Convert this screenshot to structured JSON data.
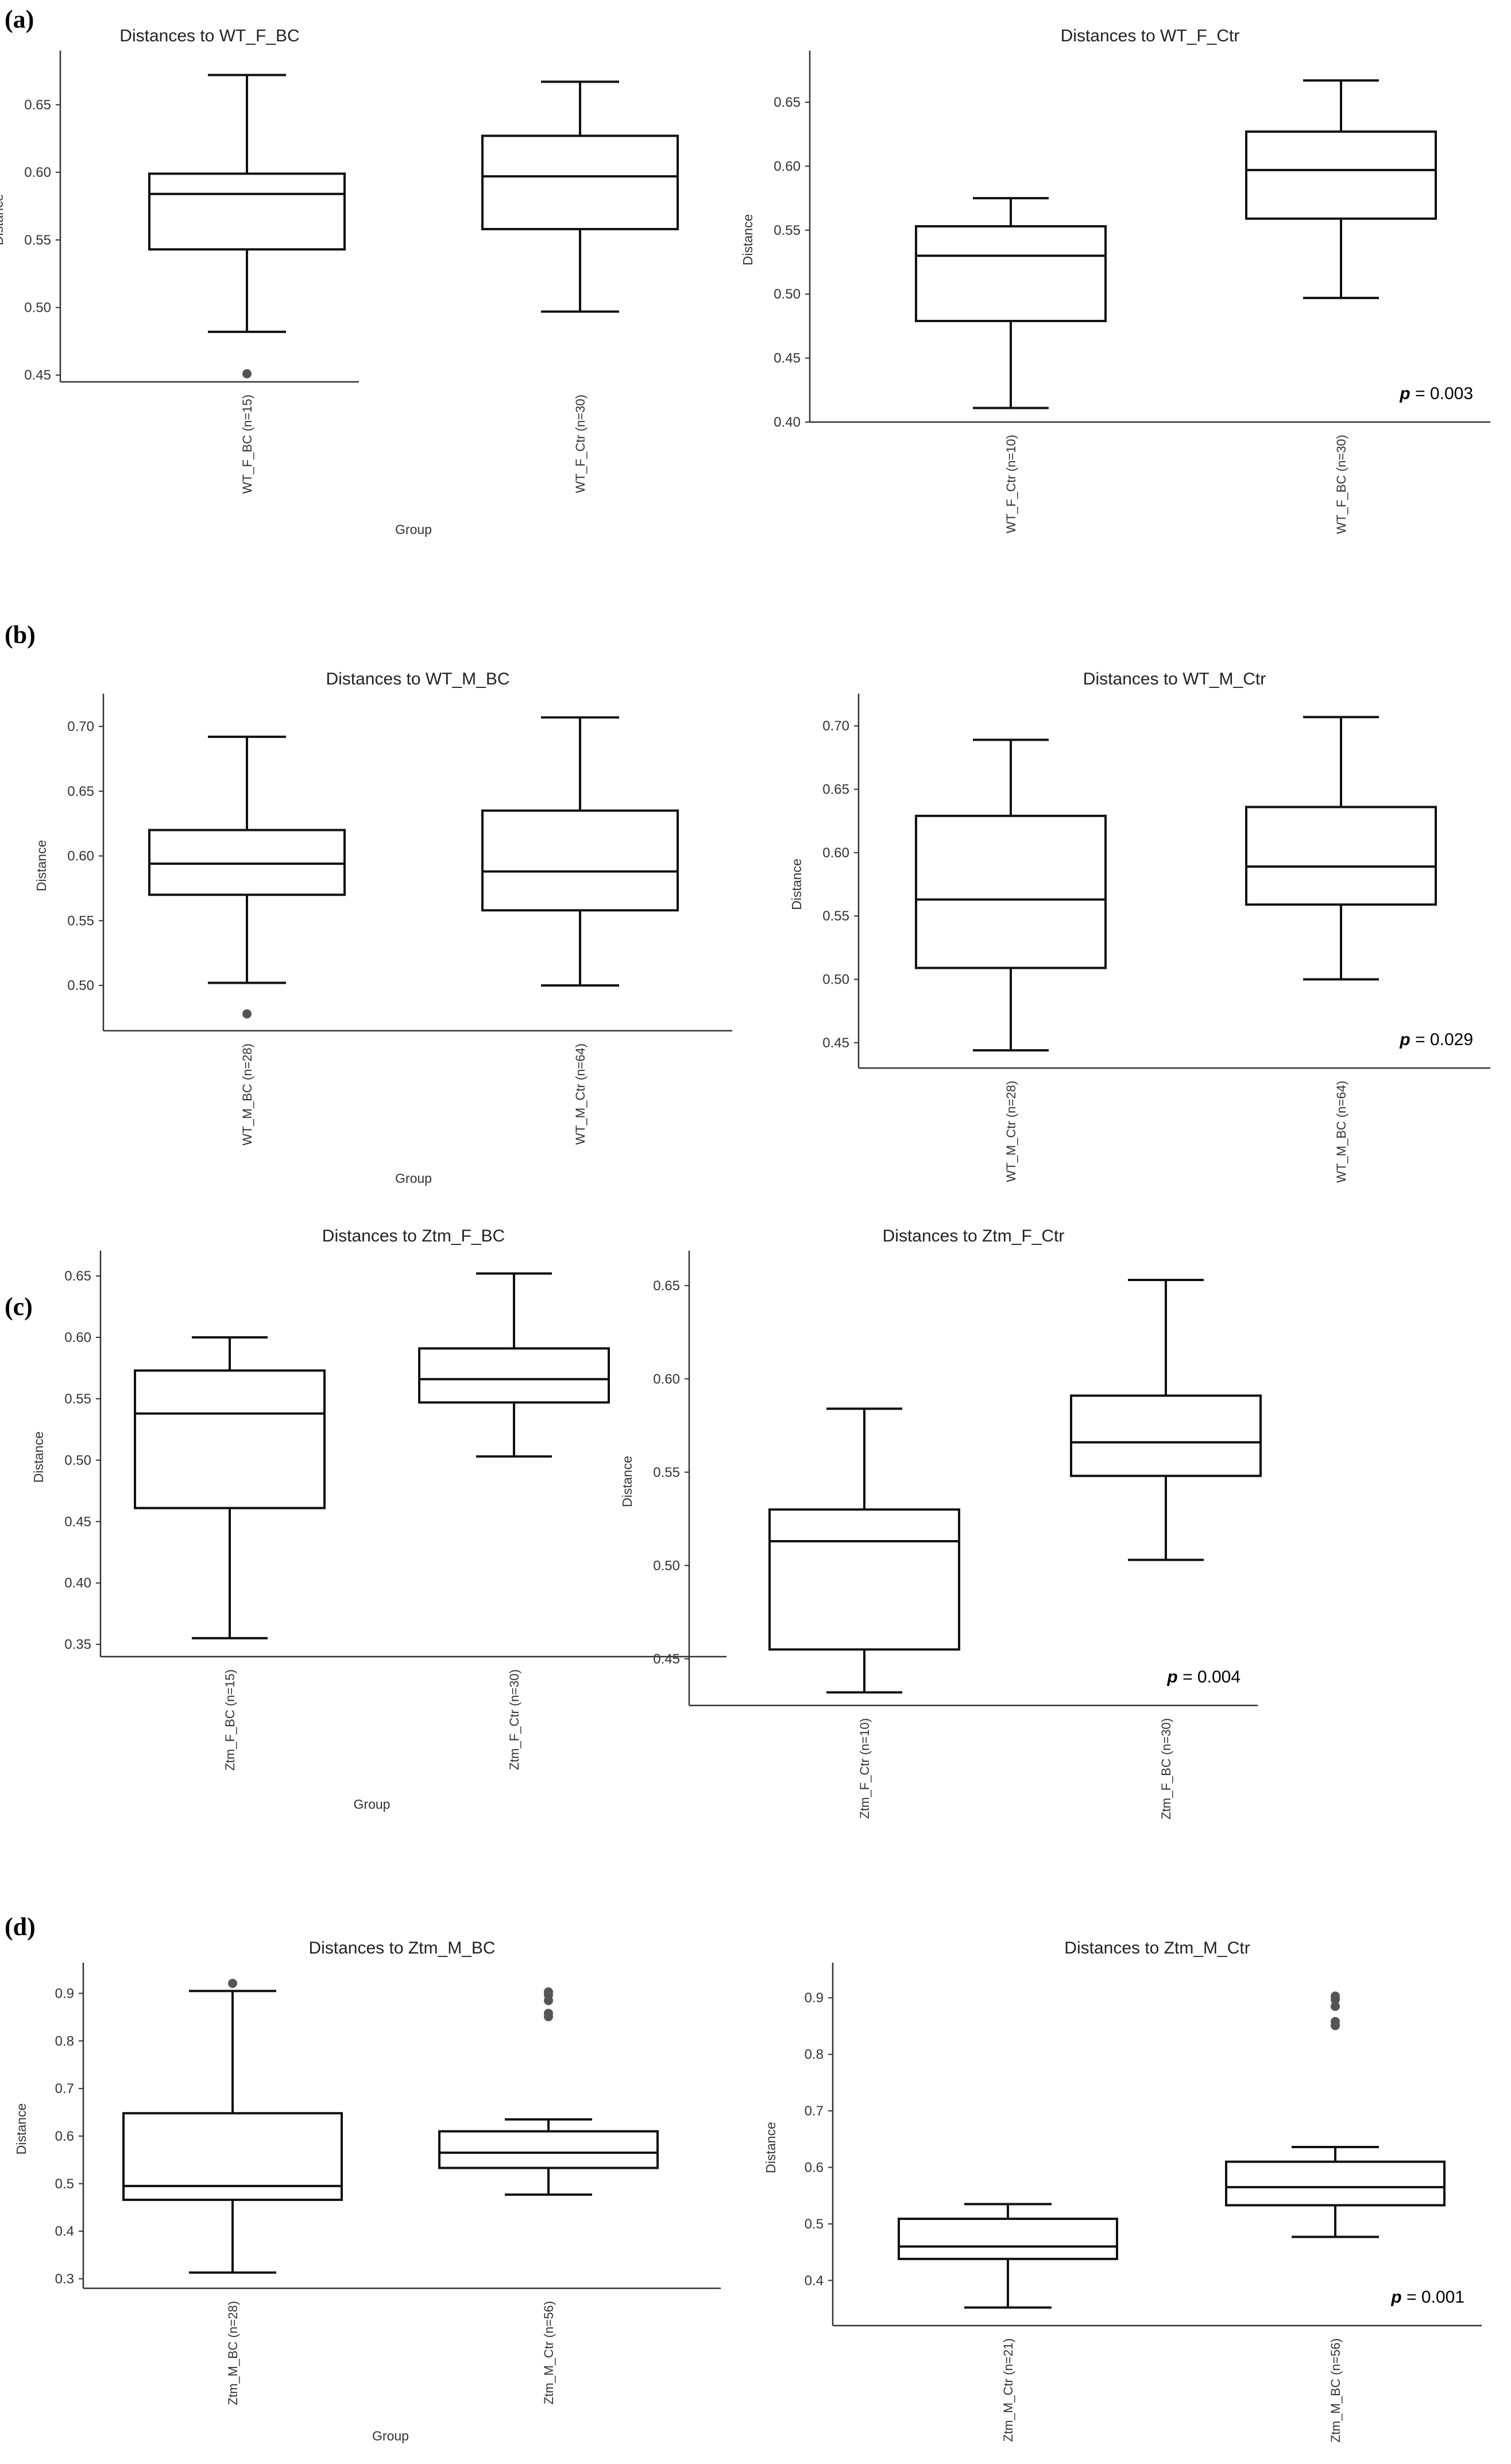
{
  "panel_labels": [
    "(a)",
    "(b)",
    "(c)",
    "(d)"
  ],
  "chart_data": [
    {
      "id": "a1",
      "panel": "(a)",
      "type": "box",
      "title": "Distances to WT_F_BC",
      "ylabel": "Distance",
      "xlabel": "Group",
      "ylim": [
        0.445,
        0.685
      ],
      "ticks": [
        0.45,
        0.5,
        0.55,
        0.6,
        0.65
      ],
      "tick_labels": [
        "0.45",
        "0.50",
        "0.55",
        "0.60",
        "0.65"
      ],
      "groups": [
        {
          "label": "WT_F_BC (n=15)",
          "whisker_low": 0.482,
          "q1": 0.543,
          "median": 0.584,
          "q3": 0.599,
          "whisker_high": 0.672,
          "outliers": [
            0.451
          ]
        },
        {
          "label": "WT_F_Ctr (n=30)",
          "whisker_low": 0.497,
          "q1": 0.558,
          "median": 0.597,
          "q3": 0.627,
          "whisker_high": 0.667,
          "outliers": []
        }
      ],
      "pvalue_label": "",
      "pvalue": ""
    },
    {
      "id": "a2",
      "panel": "(a)",
      "type": "box",
      "title": "Distances to WT_F_Ctr",
      "ylabel": "Distance",
      "xlabel": "",
      "ylim": [
        0.4,
        0.685
      ],
      "ticks": [
        0.4,
        0.45,
        0.5,
        0.55,
        0.6,
        0.65
      ],
      "tick_labels": [
        "0.40",
        "0.45",
        "0.50",
        "0.55",
        "0.60",
        "0.65"
      ],
      "groups": [
        {
          "label": "WT_F_Ctr (n=10)",
          "whisker_low": 0.411,
          "q1": 0.479,
          "median": 0.53,
          "q3": 0.553,
          "whisker_high": 0.575,
          "outliers": []
        },
        {
          "label": "WT_F_BC (n=30)",
          "whisker_low": 0.497,
          "q1": 0.559,
          "median": 0.597,
          "q3": 0.627,
          "whisker_high": 0.667,
          "outliers": []
        }
      ],
      "pvalue_label": "p",
      "pvalue": " = 0.003"
    },
    {
      "id": "b1",
      "panel": "(b)",
      "type": "box",
      "title": "Distances to WT_M_BC",
      "ylabel": "Distance",
      "xlabel": "Group",
      "ylim": [
        0.465,
        0.72
      ],
      "ticks": [
        0.5,
        0.55,
        0.6,
        0.65,
        0.7
      ],
      "tick_labels": [
        "0.50",
        "0.55",
        "0.60",
        "0.65",
        "0.70"
      ],
      "groups": [
        {
          "label": "WT_M_BC (n=28)",
          "whisker_low": 0.502,
          "q1": 0.57,
          "median": 0.594,
          "q3": 0.62,
          "whisker_high": 0.692,
          "outliers": [
            0.478
          ]
        },
        {
          "label": "WT_M_Ctr (n=64)",
          "whisker_low": 0.5,
          "q1": 0.558,
          "median": 0.588,
          "q3": 0.635,
          "whisker_high": 0.707,
          "outliers": []
        }
      ],
      "pvalue_label": "",
      "pvalue": ""
    },
    {
      "id": "b2",
      "panel": "(b)",
      "type": "box",
      "title": "Distances to WT_M_Ctr",
      "ylabel": "Distance",
      "xlabel": "",
      "ylim": [
        0.43,
        0.72
      ],
      "ticks": [
        0.45,
        0.5,
        0.55,
        0.6,
        0.65,
        0.7
      ],
      "tick_labels": [
        "0.45",
        "0.50",
        "0.55",
        "0.60",
        "0.65",
        "0.70"
      ],
      "groups": [
        {
          "label": "WT_M_Ctr (n=28)",
          "whisker_low": 0.444,
          "q1": 0.509,
          "median": 0.563,
          "q3": 0.629,
          "whisker_high": 0.689,
          "outliers": []
        },
        {
          "label": "WT_M_BC (n=64)",
          "whisker_low": 0.5,
          "q1": 0.559,
          "median": 0.589,
          "q3": 0.636,
          "whisker_high": 0.707,
          "outliers": []
        }
      ],
      "pvalue_label": "p",
      "pvalue": " = 0.029"
    },
    {
      "id": "c1",
      "panel": "(c)",
      "type": "box",
      "title": "Distances to Ztm_F_BC",
      "ylabel": "Distance",
      "xlabel": "Group",
      "ylim": [
        0.34,
        0.665
      ],
      "ticks": [
        0.35,
        0.4,
        0.45,
        0.5,
        0.55,
        0.6,
        0.65
      ],
      "tick_labels": [
        "0.35",
        "0.40",
        "0.45",
        "0.50",
        "0.55",
        "0.60",
        "0.65"
      ],
      "groups": [
        {
          "label": "Ztm_F_BC (n=15)",
          "whisker_low": 0.355,
          "q1": 0.461,
          "median": 0.538,
          "q3": 0.573,
          "whisker_high": 0.6,
          "outliers": []
        },
        {
          "label": "Ztm_F_Ctr (n=30)",
          "whisker_low": 0.503,
          "q1": 0.547,
          "median": 0.566,
          "q3": 0.591,
          "whisker_high": 0.652,
          "outliers": []
        }
      ],
      "pvalue_label": "",
      "pvalue": ""
    },
    {
      "id": "c2",
      "panel": "(c)",
      "type": "box",
      "title": "Distances to Ztm_F_Ctr",
      "ylabel": "Distance",
      "xlabel": "",
      "ylim": [
        0.425,
        0.665
      ],
      "ticks": [
        0.45,
        0.5,
        0.55,
        0.6,
        0.65
      ],
      "tick_labels": [
        "0.45",
        "0.50",
        "0.55",
        "0.60",
        "0.65"
      ],
      "groups": [
        {
          "label": "Ztm_F_Ctr (n=10)",
          "whisker_low": 0.432,
          "q1": 0.455,
          "median": 0.513,
          "q3": 0.53,
          "whisker_high": 0.584,
          "outliers": []
        },
        {
          "label": "Ztm_F_BC (n=30)",
          "whisker_low": 0.503,
          "q1": 0.548,
          "median": 0.566,
          "q3": 0.591,
          "whisker_high": 0.653,
          "outliers": []
        }
      ],
      "pvalue_label": "p",
      "pvalue": " = 0.004"
    },
    {
      "id": "d1",
      "panel": "(d)",
      "type": "box",
      "title": "Distances to Ztm_M_BC",
      "ylabel": "Distance",
      "xlabel": "Group",
      "ylim": [
        0.28,
        0.95
      ],
      "ticks": [
        0.3,
        0.4,
        0.5,
        0.6,
        0.7,
        0.8,
        0.9
      ],
      "tick_labels": [
        "0.3",
        "0.4",
        "0.5",
        "0.6",
        "0.7",
        "0.8",
        "0.9"
      ],
      "groups": [
        {
          "label": "Ztm_M_BC (n=28)",
          "whisker_low": 0.313,
          "q1": 0.466,
          "median": 0.495,
          "q3": 0.648,
          "whisker_high": 0.905,
          "outliers": [
            0.921
          ]
        },
        {
          "label": "Ztm_M_Ctr (n=56)",
          "whisker_low": 0.477,
          "q1": 0.533,
          "median": 0.565,
          "q3": 0.61,
          "whisker_high": 0.635,
          "outliers": [
            0.851,
            0.858,
            0.885,
            0.897,
            0.903
          ]
        }
      ],
      "pvalue_label": "",
      "pvalue": ""
    },
    {
      "id": "d2",
      "panel": "(d)",
      "type": "box",
      "title": "Distances to Ztm_M_Ctr",
      "ylabel": "Distance",
      "xlabel": "",
      "ylim": [
        0.32,
        0.95
      ],
      "ticks": [
        0.4,
        0.5,
        0.6,
        0.7,
        0.8,
        0.9
      ],
      "tick_labels": [
        "0.4",
        "0.5",
        "0.6",
        "0.7",
        "0.8",
        "0.9"
      ],
      "groups": [
        {
          "label": "Ztm_M_Ctr (n=21)",
          "whisker_low": 0.352,
          "q1": 0.438,
          "median": 0.46,
          "q3": 0.509,
          "whisker_high": 0.535,
          "outliers": []
        },
        {
          "label": "Ztm_M_BC (n=56)",
          "whisker_low": 0.477,
          "q1": 0.533,
          "median": 0.565,
          "q3": 0.61,
          "whisker_high": 0.636,
          "outliers": [
            0.851,
            0.858,
            0.885,
            0.897,
            0.903
          ]
        }
      ],
      "pvalue_label": "p",
      "pvalue": " = 0.001"
    }
  ]
}
